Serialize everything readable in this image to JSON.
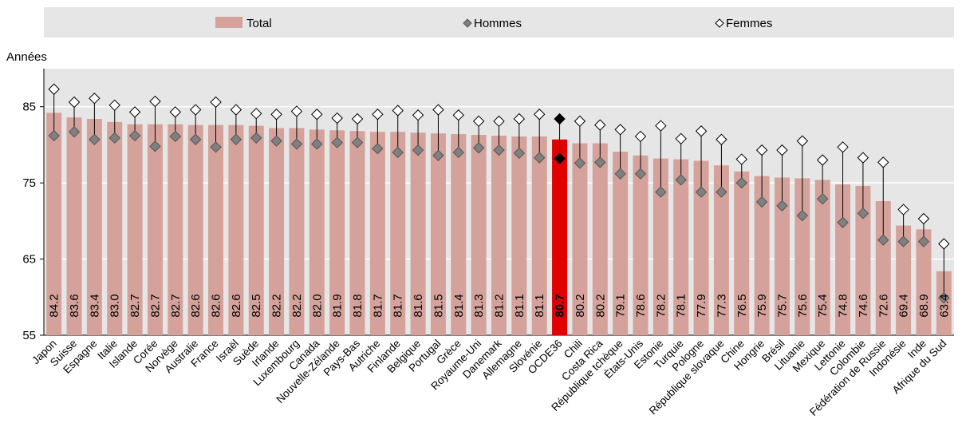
{
  "chart_data": {
    "type": "bar",
    "ylabel": "Années",
    "ylim": [
      55,
      90
    ],
    "yticks": [
      55,
      65,
      75,
      85
    ],
    "grid": true,
    "legend_position": "top",
    "highlight_category": "OCDE36",
    "colors": {
      "total": "#d4a29a",
      "highlight": "#e00000",
      "hommes": "#808080",
      "hommes_highlight": "#000000",
      "femmes": "#ffffff",
      "whisker": "#000000",
      "grid": "#ffffff"
    },
    "categories": [
      "Japon",
      "Suisse",
      "Espagne",
      "Italie",
      "Islande",
      "Corée",
      "Norvège",
      "Australie",
      "France",
      "Israël",
      "Suède",
      "Irlande",
      "Luxembourg",
      "Canada",
      "Nouvelle-Zélande",
      "Pays-Bas",
      "Autriche",
      "Finlande",
      "Belgique",
      "Portugal",
      "Grèce",
      "Royaume-Uni",
      "Danemark",
      "Allemagne",
      "Slovénie",
      "OCDE36",
      "Chili",
      "Costa Rica",
      "République tchèque",
      "États-Unis",
      "Estonie",
      "Turquie",
      "Pologne",
      "République slovaque",
      "Chine",
      "Hongrie",
      "Brésil",
      "Lituanie",
      "Mexique",
      "Lettonie",
      "Colombie",
      "Fédération de Russie",
      "Indonésie",
      "Inde",
      "Afrique du Sud"
    ],
    "value_labels": [
      "84.2",
      "83.6",
      "83.4",
      "83.0",
      "82.7",
      "82.7",
      "82.7",
      "82.6",
      "82.6",
      "82.6",
      "82.5",
      "82.2",
      "82.2",
      "82.0",
      "81.9",
      "81.8",
      "81.7",
      "81.7",
      "81.6",
      "81.5",
      "81.4",
      "81.3",
      "81.2",
      "81.1",
      "81.1",
      "80.7",
      "80.2",
      "80.2",
      "79.1",
      "78.6",
      "78.2",
      "78.1",
      "77.9",
      "77.3",
      "76.5",
      "75.9",
      "75.7",
      "75.6",
      "75.4",
      "74.8",
      "74.6",
      "72.6",
      "69.4",
      "68.9",
      "63.4"
    ],
    "series": [
      {
        "name": "Total",
        "values": [
          84.2,
          83.6,
          83.4,
          83.0,
          82.7,
          82.7,
          82.7,
          82.6,
          82.6,
          82.6,
          82.5,
          82.2,
          82.2,
          82.0,
          81.9,
          81.8,
          81.7,
          81.7,
          81.6,
          81.5,
          81.4,
          81.3,
          81.2,
          81.1,
          81.1,
          80.7,
          80.2,
          80.2,
          79.1,
          78.6,
          78.2,
          78.1,
          77.9,
          77.3,
          76.5,
          75.9,
          75.7,
          75.6,
          75.4,
          74.8,
          74.6,
          72.6,
          69.4,
          68.9,
          63.4
        ]
      },
      {
        "name": "Hommes",
        "values": [
          81.2,
          81.7,
          80.7,
          80.9,
          81.2,
          79.8,
          81.1,
          80.7,
          79.7,
          80.7,
          80.9,
          80.5,
          80.1,
          80.1,
          80.3,
          80.3,
          79.5,
          79.0,
          79.3,
          78.6,
          79.0,
          79.6,
          79.3,
          78.9,
          78.3,
          78.2,
          77.6,
          77.7,
          76.2,
          76.2,
          73.8,
          75.4,
          73.8,
          73.8,
          75.0,
          72.5,
          72.0,
          70.7,
          72.9,
          69.8,
          71.0,
          67.5,
          67.3,
          67.3,
          59.9
        ]
      },
      {
        "name": "Femmes",
        "values": [
          87.3,
          85.6,
          86.1,
          85.2,
          84.3,
          85.7,
          84.3,
          84.6,
          85.6,
          84.6,
          84.1,
          84.0,
          84.4,
          84.0,
          83.5,
          83.4,
          84.0,
          84.5,
          83.9,
          84.6,
          83.9,
          83.1,
          83.1,
          83.4,
          84.0,
          83.4,
          83.1,
          82.6,
          82.0,
          81.1,
          82.5,
          80.8,
          81.8,
          80.7,
          78.1,
          79.3,
          79.3,
          80.5,
          78.0,
          79.7,
          78.3,
          77.7,
          71.5,
          70.3,
          67.0
        ]
      }
    ]
  }
}
